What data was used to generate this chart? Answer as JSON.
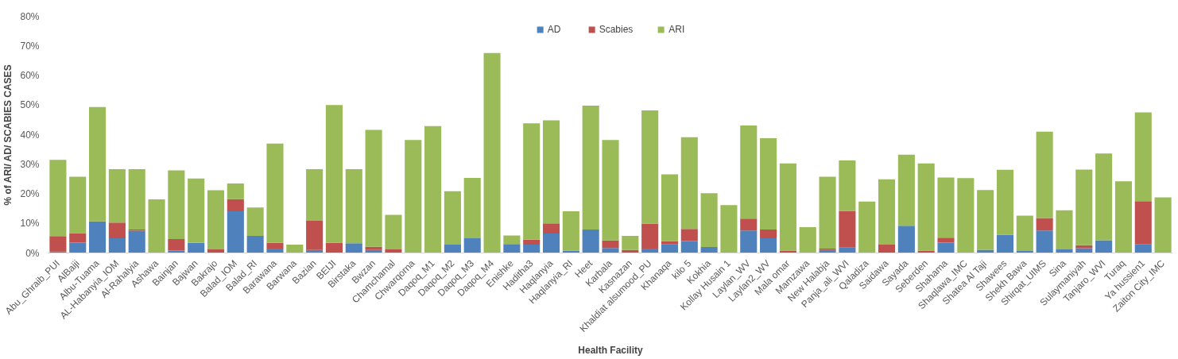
{
  "chart_data": {
    "type": "bar",
    "stacked": true,
    "xlabel": "Health Facility",
    "ylabel": "% of ARI/ AD/ SCABIES CASES",
    "categories": [
      "Abu_Ghraib_PUI",
      "AlBaiji",
      "Albu-Tuama",
      "AL-Habanyia_IOM",
      "Al-Rahalyia",
      "Ashawa",
      "Bainjan",
      "Bajwan",
      "Bakrajo",
      "Balad_IOM",
      "Balad_RI",
      "Barawana",
      "Barwana",
      "Bazian",
      "BEIJI",
      "Birstaka",
      "Bwzan",
      "Chamchamal",
      "Chwarqorna",
      "Daqoq_M1",
      "Daqoq_M2",
      "Daqoq_M3",
      "Daqoq_M4",
      "Enishke",
      "Haditha3",
      "Haqlanyia",
      "Haqlanyia_RI",
      "Heet",
      "Karbala",
      "Kasnazan",
      "Khaldiat alsumood_PU",
      "Khanaqa",
      "kilo 5",
      "Kokhia",
      "Kollay Husain 1",
      "Laylan_WV",
      "Laylan2_WV",
      "Mala omar",
      "Mamzawa",
      "New Halabja",
      "Panja_ali_WVI",
      "Qaladiza",
      "Saidawa",
      "Sayada",
      "Seberden",
      "Shahama",
      "Shaqlawa_IMC",
      "Shatea Al Taji",
      "Shawees",
      "Shekh Bawa",
      "Shirqat_UIMS",
      "Sina",
      "Sulaymaniyah",
      "Tanjaro_WVI",
      "Turaq",
      "Ya hussien1",
      "Zaiton City_IMC"
    ],
    "series": [
      {
        "name": "AD",
        "color": "#4f81bd",
        "values": [
          0.5,
          3.5,
          10.7,
          5.0,
          7.5,
          0,
          0.8,
          3.4,
          0,
          14.1,
          5.8,
          1.5,
          0,
          1.0,
          0,
          3.3,
          1.0,
          0,
          0,
          0,
          2.8,
          5.0,
          0,
          3.0,
          2.8,
          6.6,
          0.8,
          7.9,
          1.7,
          0,
          1.5,
          2.9,
          4.0,
          2.0,
          0,
          7.6,
          5.0,
          0,
          0,
          1.0,
          1.8,
          0,
          0,
          9.2,
          0,
          3.5,
          0,
          1.1,
          6.2,
          0.7,
          7.6,
          1.2,
          1.6,
          4.3,
          0,
          2.9,
          0
        ]
      },
      {
        "name": "Scabies",
        "color": "#c0504d",
        "values": [
          5.2,
          3.2,
          0,
          5.3,
          0.4,
          0,
          3.9,
          0,
          1.2,
          4.1,
          0,
          1.9,
          0,
          9.9,
          3.4,
          0,
          1.1,
          1.2,
          0,
          0,
          0,
          0,
          0,
          0,
          1.7,
          3.4,
          0,
          0,
          2.5,
          1.0,
          8.4,
          1.1,
          4.1,
          0,
          0,
          4.0,
          2.9,
          0.8,
          0,
          0.5,
          12.4,
          0,
          2.8,
          0,
          0.8,
          1.7,
          0,
          0,
          0,
          0,
          4.2,
          0,
          1.0,
          0,
          0,
          14.6,
          0
        ]
      },
      {
        "name": "ARI",
        "color": "#9bbb59",
        "values": [
          25.8,
          19.1,
          38.6,
          18.0,
          20.4,
          18.1,
          23.2,
          21.8,
          20.0,
          5.3,
          9.6,
          33.6,
          2.8,
          17.4,
          46.6,
          25.0,
          39.5,
          11.7,
          38.2,
          42.9,
          18.1,
          20.4,
          67.6,
          2.9,
          39.3,
          34.8,
          13.3,
          41.9,
          34.0,
          4.8,
          38.3,
          22.6,
          31.0,
          18.2,
          16.2,
          31.5,
          30.9,
          29.5,
          8.7,
          24.3,
          17.1,
          17.4,
          22.1,
          24.0,
          29.5,
          20.3,
          25.3,
          20.2,
          21.9,
          11.9,
          29.2,
          13.2,
          25.6,
          29.3,
          24.2,
          30.0,
          18.8
        ]
      }
    ],
    "ylim": [
      0,
      80
    ],
    "yticks": [
      {
        "value": 0,
        "label": "0%"
      },
      {
        "value": 10,
        "label": "10%"
      },
      {
        "value": 20,
        "label": "20%"
      },
      {
        "value": 30,
        "label": "30%"
      },
      {
        "value": 40,
        "label": "40%"
      },
      {
        "value": 50,
        "label": "50%"
      },
      {
        "value": 60,
        "label": "60%"
      },
      {
        "value": 70,
        "label": "70%"
      },
      {
        "value": 80,
        "label": "80%"
      }
    ],
    "grid": false,
    "legend": "top"
  }
}
